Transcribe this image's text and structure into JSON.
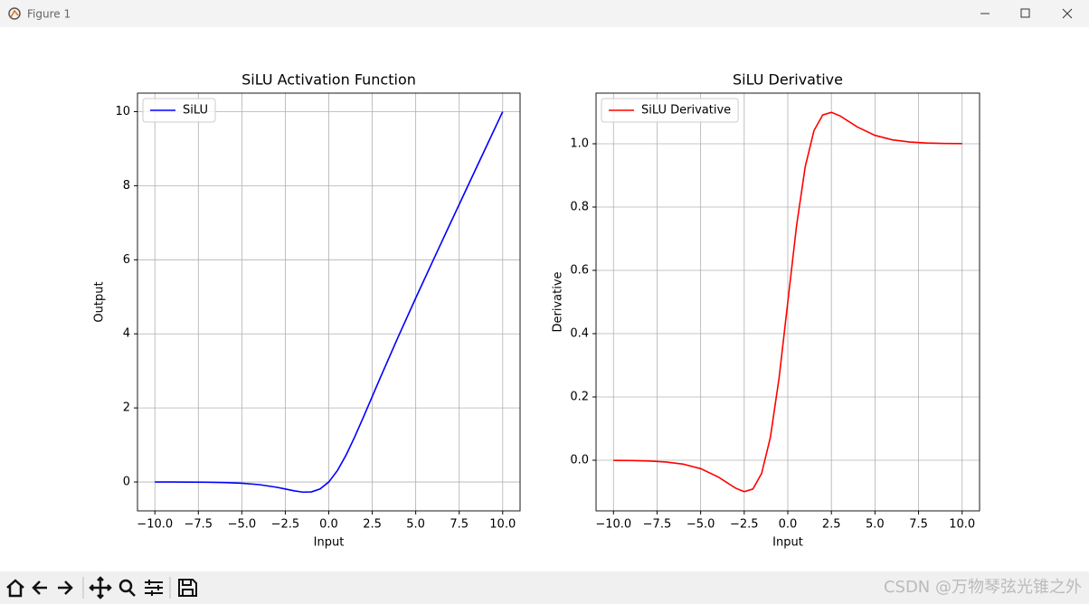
{
  "window": {
    "title": "Figure 1"
  },
  "watermark": "CSDN @万物琴弦光锥之外",
  "chart_data": [
    {
      "type": "line",
      "title": "SiLU Activation Function",
      "xlabel": "Input",
      "ylabel": "Output",
      "x": [
        -10,
        -9,
        -8,
        -7,
        -6,
        -5,
        -4,
        -3,
        -2.5,
        -2,
        -1.5,
        -1,
        -0.5,
        0,
        0.5,
        1,
        1.5,
        2,
        2.5,
        3,
        4,
        5,
        6,
        7,
        8,
        9,
        10
      ],
      "series": [
        {
          "name": "SiLU",
          "color": "#0000ff",
          "values": [
            -0.000454,
            -0.00111,
            -0.00268,
            -0.00638,
            -0.01484,
            -0.03346,
            -0.07194,
            -0.14228,
            -0.18965,
            -0.23841,
            -0.27364,
            -0.26894,
            -0.18877,
            0,
            0.31123,
            0.73106,
            1.22636,
            1.76159,
            2.31036,
            2.85772,
            3.92806,
            4.96654,
            5.98516,
            6.99362,
            7.99732,
            8.99889,
            9.99955
          ]
        }
      ],
      "xlim": [
        -11,
        11
      ],
      "ylim": [
        -0.78,
        10.5
      ],
      "xticks": [
        {
          "value": -10,
          "label": "−10.0"
        },
        {
          "value": -7.5,
          "label": "−7.5"
        },
        {
          "value": -5,
          "label": "−5.0"
        },
        {
          "value": -2.5,
          "label": "−2.5"
        },
        {
          "value": 0,
          "label": "0.0"
        },
        2.5,
        {
          "value": 5,
          "label": "5.0"
        },
        7.5,
        {
          "value": 10,
          "label": "10.0"
        }
      ],
      "yticks": [
        0,
        2,
        4,
        6,
        8,
        10
      ],
      "grid": true,
      "legend": "upper left"
    },
    {
      "type": "line",
      "title": "SiLU Derivative",
      "xlabel": "Input",
      "ylabel": "Derivative",
      "x": [
        -10,
        -9,
        -8,
        -7,
        -6,
        -5,
        -4,
        -3,
        -2.5,
        -2,
        -1.5,
        -1,
        -0.5,
        0,
        0.5,
        1,
        1.5,
        2,
        2.5,
        3,
        4,
        5,
        6,
        7,
        8,
        9,
        10
      ],
      "series": [
        {
          "name": "SiLU Derivative",
          "color": "#ff0000",
          "values": [
            -0.000409,
            -0.000987,
            -0.002345,
            -0.00546,
            -0.01233,
            -0.02655,
            -0.05266,
            -0.0881,
            -0.0994,
            -0.09078,
            -0.04129,
            0.07233,
            0.26004,
            0.5,
            0.73996,
            0.92767,
            1.04129,
            1.09078,
            1.0994,
            1.0881,
            1.05266,
            1.02655,
            1.01233,
            1.00546,
            1.00235,
            1.00099,
            1.00041
          ]
        }
      ],
      "xlim": [
        -11,
        11
      ],
      "ylim": [
        -0.16,
        1.16
      ],
      "xticks": [
        {
          "value": -10,
          "label": "−10.0"
        },
        {
          "value": -7.5,
          "label": "−7.5"
        },
        {
          "value": -5,
          "label": "−5.0"
        },
        {
          "value": -2.5,
          "label": "−2.5"
        },
        {
          "value": 0,
          "label": "0.0"
        },
        2.5,
        {
          "value": 5,
          "label": "5.0"
        },
        7.5,
        {
          "value": 10,
          "label": "10.0"
        }
      ],
      "yticks": [
        {
          "value": 0,
          "label": "0.0"
        },
        0.2,
        0.4,
        0.6,
        0.8,
        {
          "value": 1,
          "label": "1.0"
        }
      ],
      "grid": true,
      "legend": "upper left"
    }
  ]
}
